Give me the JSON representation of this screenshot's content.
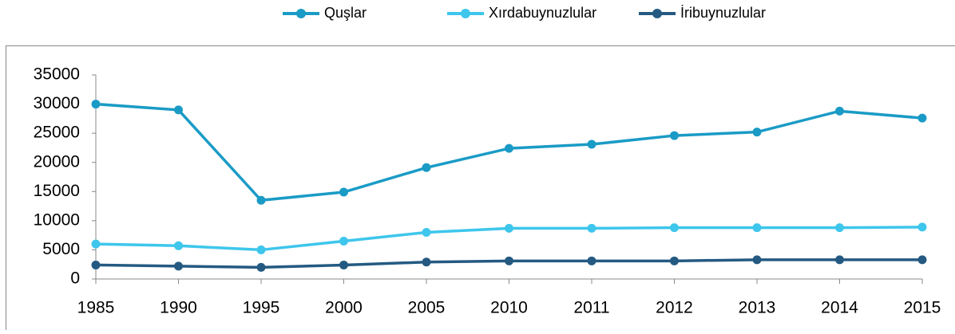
{
  "chart_data": {
    "type": "line",
    "categories": [
      "1985",
      "1990",
      "1995",
      "2000",
      "2005",
      "2010",
      "2011",
      "2012",
      "2013",
      "2014",
      "2015"
    ],
    "series": [
      {
        "name": "Quşlar",
        "color": "#1a9bc6",
        "values": [
          30000,
          29000,
          13500,
          14900,
          19100,
          22400,
          23100,
          24600,
          25200,
          28800,
          27600
        ]
      },
      {
        "name": "Xırdabuynuzlular",
        "color": "#3ec6ec",
        "values": [
          6000,
          5700,
          5000,
          6500,
          8000,
          8700,
          8700,
          8800,
          8800,
          8800,
          8900
        ]
      },
      {
        "name": "İribuynuzlular",
        "color": "#245a82",
        "values": [
          2400,
          2200,
          2000,
          2400,
          2900,
          3100,
          3100,
          3100,
          3300,
          3300,
          3300
        ]
      }
    ],
    "ylim": [
      0,
      35000
    ],
    "yticks": [
      0,
      5000,
      10000,
      15000,
      20000,
      25000,
      30000,
      35000
    ],
    "legend": "top"
  }
}
